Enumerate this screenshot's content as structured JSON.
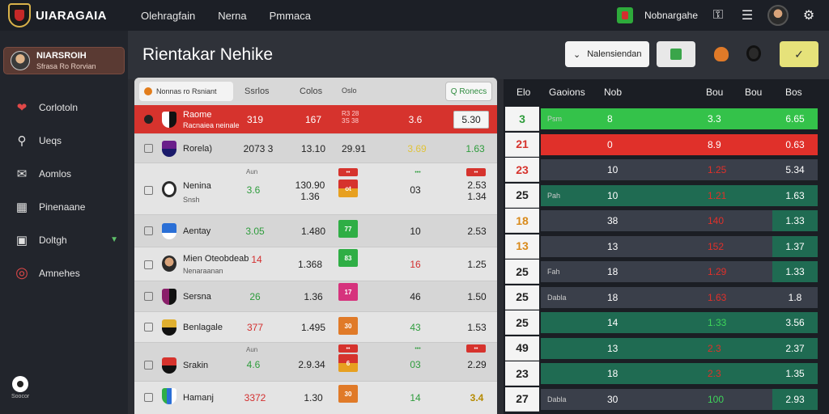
{
  "app": {
    "logo_text": "UIARAGAIA",
    "top_nav": [
      "Olehragfain",
      "Nerna",
      "Pmmaca"
    ],
    "user_name": "Nobnargahe"
  },
  "sidebar": {
    "profile_name": "NIARSROIH",
    "profile_sub": "Sfrasa Ro Rorvian",
    "items": [
      {
        "label": "Corlotoln",
        "icon": "heart-icon"
      },
      {
        "label": "Ueqs",
        "icon": "search-icon"
      },
      {
        "label": "Aomlos",
        "icon": "mail-icon"
      },
      {
        "label": "Pinenaane",
        "icon": "grid-icon"
      },
      {
        "label": "Doltgh",
        "icon": "folder-icon"
      },
      {
        "label": "Amnehes",
        "icon": "target-icon"
      }
    ],
    "ball_label": "Soocor"
  },
  "header": {
    "title": "Rientakar Nehike",
    "select_label": "Nalensiendan"
  },
  "left_table": {
    "sort_label": "Nonnas ro Rsniant",
    "headers": [
      "Ssrlos",
      "Colos",
      "Oslo"
    ],
    "filter_label": "Q Ronecs",
    "rows": [
      {
        "name": "Raome",
        "sub": "Racnaiea neinale",
        "c1": "319",
        "c2": "167",
        "c3": "R3 28\n3S 38",
        "c4": "3.6",
        "box": "5.30"
      },
      {
        "name": "Rorela)",
        "c1": "2073 3",
        "c2": "13.10",
        "c3": "29.91",
        "c4": "3.69",
        "c5": "1.63"
      },
      {
        "name": "Nenina",
        "sub": "Snsh",
        "top1": "Aun",
        "c1": "3.6",
        "c2": "130.90\n1.36",
        "c4": "03",
        "c5": "2.53\n1.34",
        "chip": "ot"
      },
      {
        "name": "Aentay",
        "c1": "3.05",
        "c2": "1.480",
        "c4": "10",
        "c5": "2.53",
        "chip": "77"
      },
      {
        "name": "Mien Oteobdeab",
        "sub": "Nenaraanan",
        "c1": "14",
        "c2": "1.368",
        "c4": "16",
        "c5": "1.25",
        "chip": "83"
      },
      {
        "name": "Sersna",
        "c1": "26",
        "c2": "1.36",
        "c4": "46",
        "c5": "1.50",
        "chip": "17"
      },
      {
        "name": "Benlagale",
        "c1": "377",
        "c2": "1.495",
        "c4": "43",
        "c5": "1.53",
        "chip": "30"
      },
      {
        "name": "Srakin",
        "top1": "Aun",
        "c1": "4.6",
        "c2": "2.9.34",
        "c4": "03",
        "c5": "2.29",
        "chip": "6"
      },
      {
        "name": "Hamanj",
        "c1": "3372",
        "c2": "1.30",
        "c4": "14",
        "c5": "3.4",
        "chip": "30"
      }
    ]
  },
  "right_table": {
    "headers": [
      "Elo",
      "Gaoions",
      "Nob",
      "Bou",
      "Bou",
      "Bos"
    ],
    "rows": [
      {
        "n": "3",
        "label": "Psm",
        "a": "8",
        "b": "3.3",
        "c": "6.65",
        "tone": "green"
      },
      {
        "n": "21",
        "label": "",
        "a": "0",
        "b": "8.9",
        "c": "0.63",
        "tone": "red"
      },
      {
        "n": "23",
        "label": "",
        "a": "10",
        "b": "1.25",
        "c": "5.34",
        "tone": "dark"
      },
      {
        "n": "25",
        "label": "Pah",
        "a": "10",
        "b": "1.21",
        "c": "1.63",
        "tone": "teal"
      },
      {
        "n": "18",
        "label": "",
        "a": "38",
        "b": "140",
        "c": "1.33",
        "tone": "dark"
      },
      {
        "n": "13",
        "label": "",
        "a": "13",
        "b": "152",
        "c": "1.37",
        "tone": "dark"
      },
      {
        "n": "25",
        "label": "Fah",
        "a": "18",
        "b": "1.29",
        "c": "1.33",
        "tone": "dark"
      },
      {
        "n": "25",
        "label": "Dabla",
        "a": "18",
        "b": "1.63",
        "c": "1.8",
        "tone": "dark"
      },
      {
        "n": "25",
        "label": "",
        "a": "14",
        "b": "1.33",
        "c": "3.56",
        "tone": "teal"
      },
      {
        "n": "49",
        "label": "",
        "a": "13",
        "b": "2.3",
        "c": "2.37",
        "tone": "teal"
      },
      {
        "n": "23",
        "label": "",
        "a": "18",
        "b": "2.3",
        "c": "1.35",
        "tone": "teal"
      },
      {
        "n": "27",
        "label": "Dabla",
        "a": "30",
        "b": "100",
        "c": "2.93",
        "tone": "dark"
      }
    ]
  },
  "colors": {
    "accent_red": "#d6332d",
    "accent_green": "#2fbf4a",
    "teal": "#1f6b52"
  }
}
